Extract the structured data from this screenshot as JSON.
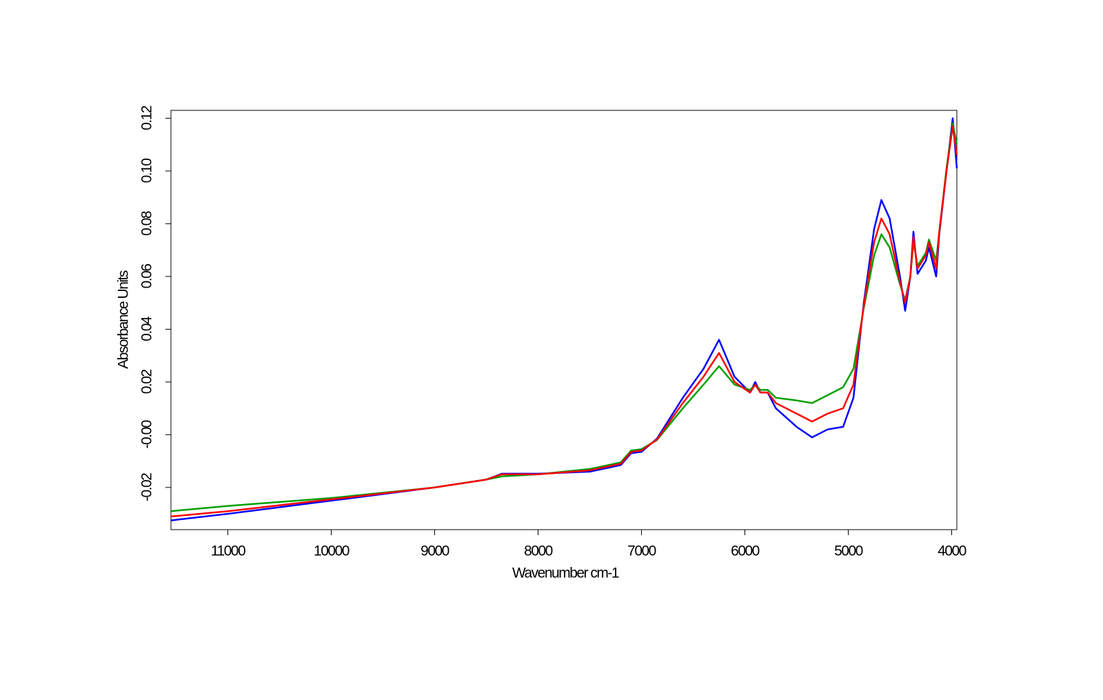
{
  "chart_data": {
    "type": "line",
    "x_label": "Wavenumber cm-1",
    "y_label": "Absorbance Units",
    "xlim": [
      11550,
      3950
    ],
    "ylim": [
      -0.036,
      0.123
    ],
    "xticks": [
      11000,
      10000,
      9000,
      8000,
      7000,
      6000,
      5000,
      4000
    ],
    "yticks": [
      {
        "value": -0.02,
        "label": "-0.02"
      },
      {
        "value": 0,
        "label": "-0.00"
      },
      0.02,
      0.04,
      0.06,
      0.08,
      {
        "value": 0.1,
        "label": "0.10"
      },
      0.12
    ],
    "x": [
      11550,
      11000,
      10000,
      9000,
      8500,
      8350,
      8000,
      7500,
      7200,
      7100,
      7000,
      6850,
      6600,
      6400,
      6250,
      6100,
      5950,
      5900,
      5850,
      5780,
      5700,
      5500,
      5350,
      5200,
      5050,
      4950,
      4850,
      4750,
      4680,
      4600,
      4500,
      4450,
      4400,
      4370,
      4330,
      4250,
      4220,
      4150,
      4120,
      4050,
      3990,
      3950
    ],
    "series": [
      {
        "color": "#0000ff",
        "values": [
          -0.0325,
          -0.03,
          -0.025,
          -0.02,
          -0.017,
          -0.0148,
          -0.0148,
          -0.014,
          -0.0115,
          -0.007,
          -0.0065,
          -0.0015,
          0.014,
          0.025,
          0.036,
          0.022,
          0.016,
          0.02,
          0.016,
          0.016,
          0.01,
          0.003,
          -0.001,
          0.002,
          0.003,
          0.014,
          0.05,
          0.078,
          0.089,
          0.082,
          0.06,
          0.047,
          0.06,
          0.077,
          0.061,
          0.066,
          0.071,
          0.06,
          0.076,
          0.1,
          0.12,
          0.101
        ]
      },
      {
        "color": "#00a000",
        "values": [
          -0.029,
          -0.027,
          -0.024,
          -0.02,
          -0.017,
          -0.0158,
          -0.015,
          -0.013,
          -0.0105,
          -0.006,
          -0.0055,
          -0.002,
          0.01,
          0.019,
          0.026,
          0.019,
          0.017,
          0.019,
          0.017,
          0.017,
          0.014,
          0.013,
          0.012,
          0.015,
          0.018,
          0.025,
          0.048,
          0.068,
          0.076,
          0.071,
          0.057,
          0.051,
          0.06,
          0.073,
          0.064,
          0.069,
          0.074,
          0.066,
          0.077,
          0.101,
          0.118,
          0.11
        ]
      },
      {
        "color": "#ff0000",
        "values": [
          -0.031,
          -0.029,
          -0.0245,
          -0.02,
          -0.017,
          -0.015,
          -0.015,
          -0.0135,
          -0.011,
          -0.0065,
          -0.006,
          -0.0018,
          0.012,
          0.022,
          0.031,
          0.02,
          0.016,
          0.019,
          0.016,
          0.016,
          0.012,
          0.008,
          0.005,
          0.008,
          0.01,
          0.019,
          0.049,
          0.073,
          0.082,
          0.076,
          0.058,
          0.05,
          0.06,
          0.075,
          0.063,
          0.068,
          0.073,
          0.063,
          0.077,
          0.1,
          0.117,
          0.106
        ]
      }
    ]
  }
}
